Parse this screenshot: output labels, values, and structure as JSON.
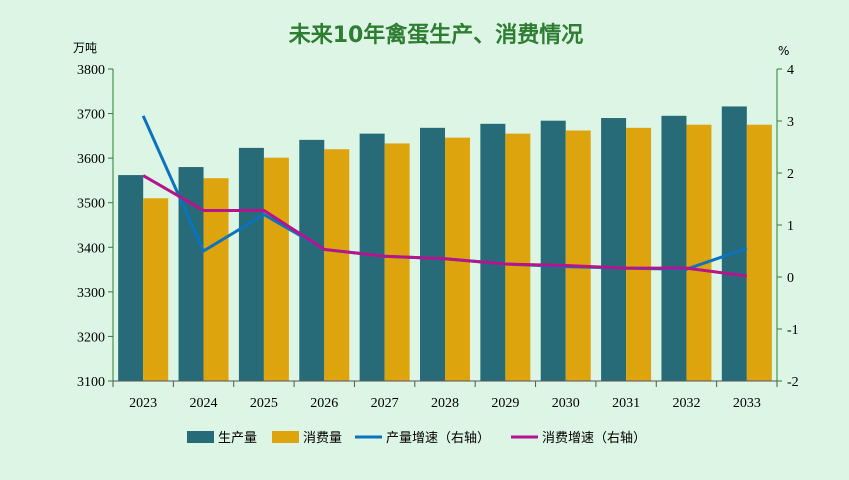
{
  "chart_data": {
    "type": "bar",
    "title": "未来10年禽蛋生产、消费情况",
    "left_unit": "万吨",
    "right_unit": "%",
    "categories": [
      "2023",
      "2024",
      "2025",
      "2026",
      "2027",
      "2028",
      "2029",
      "2030",
      "2031",
      "2032",
      "2033"
    ],
    "ylim_left": [
      3100,
      3800
    ],
    "left_ticks": [
      3100,
      3200,
      3300,
      3400,
      3500,
      3600,
      3700,
      3800
    ],
    "ylim_right": [
      -2,
      4
    ],
    "right_ticks": [
      -2,
      -1,
      0,
      1,
      2,
      3,
      4
    ],
    "series": [
      {
        "name": "生产量",
        "axis": "left",
        "kind": "bar",
        "color": "#266b77",
        "values": [
          3562,
          3580,
          3623,
          3641,
          3655,
          3668,
          3677,
          3684,
          3690,
          3695,
          3716
        ]
      },
      {
        "name": "消费量",
        "axis": "left",
        "kind": "bar",
        "color": "#dea40e",
        "values": [
          3510,
          3555,
          3601,
          3620,
          3633,
          3646,
          3655,
          3662,
          3668,
          3675,
          3675
        ]
      },
      {
        "name": "产量增速（右轴）",
        "axis": "right",
        "kind": "line",
        "color": "#0a73bd",
        "values": [
          3.1,
          0.5,
          1.2,
          0.53,
          0.4,
          0.35,
          0.25,
          0.2,
          0.17,
          0.15,
          0.55
        ]
      },
      {
        "name": "消费增速（右轴）",
        "axis": "right",
        "kind": "line",
        "color": "#b5148c",
        "values": [
          1.95,
          1.28,
          1.28,
          0.53,
          0.4,
          0.35,
          0.25,
          0.22,
          0.17,
          0.17,
          0.02
        ]
      }
    ],
    "grid": false,
    "legend": "bottom"
  }
}
